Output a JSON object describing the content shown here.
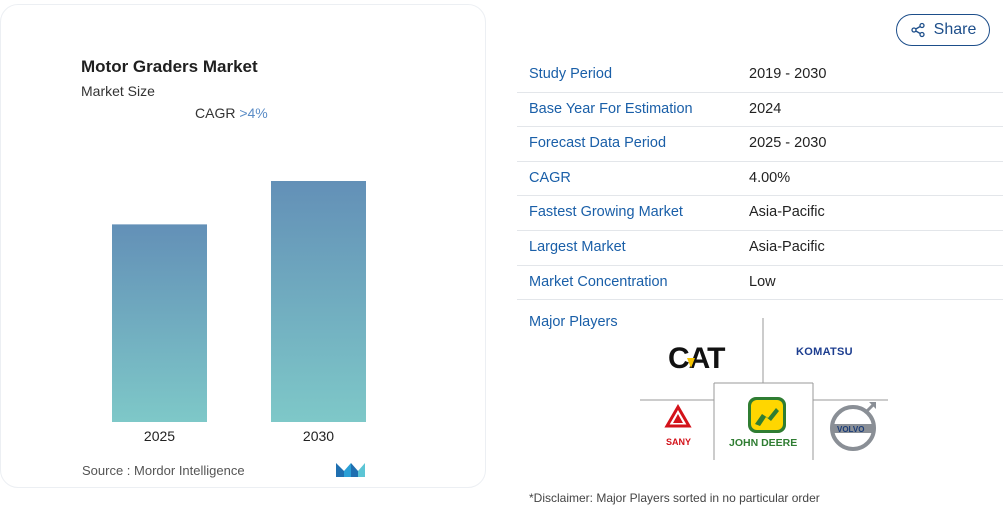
{
  "chart_card": {
    "title": "Motor Graders Market",
    "subtitle": "Market Size",
    "cagr_prefix": "CAGR",
    "cagr_value": ">4%",
    "source": "Source :  Mordor Intelligence"
  },
  "chart_data": {
    "type": "bar",
    "categories": [
      "2025",
      "2030"
    ],
    "values": [
      0.82,
      1.0
    ],
    "value_note": "relative bar heights; no values printed",
    "colors": {
      "top": "#6390b7",
      "bottom": "#7ec8c8"
    }
  },
  "share": {
    "label": "Share",
    "icon": "share-icon"
  },
  "info": {
    "rows": [
      {
        "key": "Study Period",
        "value": "2019 - 2030"
      },
      {
        "key": "Base Year For Estimation",
        "value": "2024"
      },
      {
        "key": "Forecast Data Period",
        "value": "2025 - 2030"
      },
      {
        "key": "CAGR",
        "value": "4.00%"
      },
      {
        "key": "Fastest Growing Market",
        "value": "Asia-Pacific"
      },
      {
        "key": "Largest Market",
        "value": "Asia-Pacific"
      },
      {
        "key": "Market Concentration",
        "value": "Low"
      }
    ]
  },
  "players": {
    "label": "Major Players",
    "logos": [
      "CAT",
      "KOMATSU",
      "SANY",
      "JOHN DEERE",
      "VOLVO"
    ]
  },
  "disclaimer": "*Disclaimer: Major Players sorted in no particular order"
}
